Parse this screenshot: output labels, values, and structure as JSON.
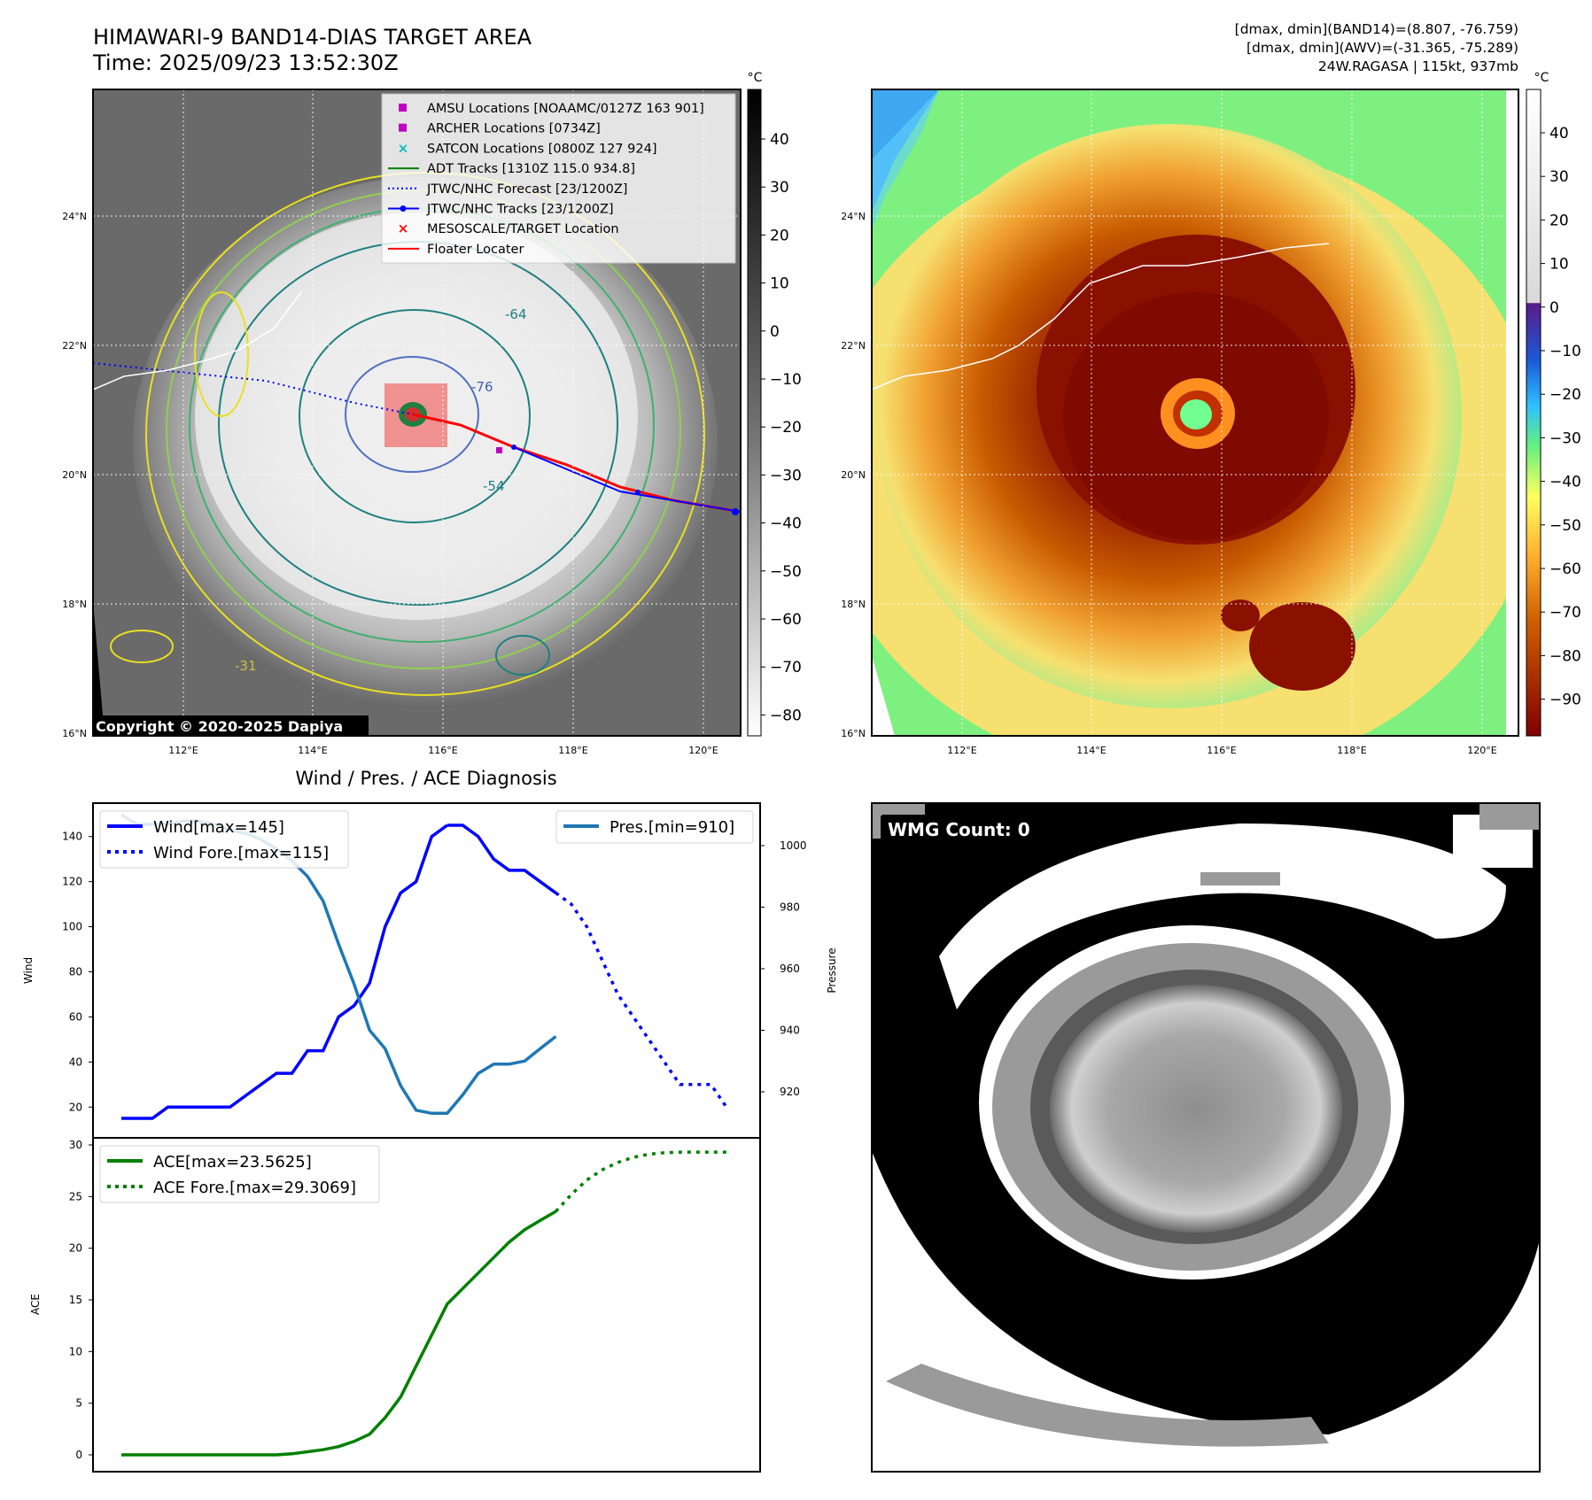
{
  "header": {
    "title": "HIMAWARI-9 BAND14-DIAS TARGET AREA",
    "time": "Time: 2025/09/23 13:52:30Z",
    "right_line1": "[dmax, dmin](BAND14)=(8.807, -76.759)",
    "right_line2": "[dmax, dmin](AWV)=(-31.365, -75.289)",
    "right_line3": "24W.RAGASA | 115kt, 937mb"
  },
  "maps": {
    "lat_labels": [
      "24°N",
      "22°N",
      "20°N",
      "18°N",
      "16°N"
    ],
    "lon_labels": [
      "112°E",
      "114°E",
      "116°E",
      "118°E",
      "120°E"
    ],
    "copyright": "Copyright © 2020-2025 Dapiya",
    "contour_labels": [
      "-31",
      "-54",
      "-64",
      "-76"
    ],
    "legend": [
      {
        "label": "AMSU Locations [NOAAMC/0127Z 163 901]",
        "marker": "square",
        "color": "#c000c0"
      },
      {
        "label": "ARCHER Locations [0734Z]",
        "marker": "square",
        "color": "#c000c0"
      },
      {
        "label": "SATCON Locations [0800Z 127 924]",
        "marker": "x",
        "color": "#00bfbf"
      },
      {
        "label": "ADT Tracks [1310Z 115.0 934.8]",
        "marker": "line",
        "color": "#008000"
      },
      {
        "label": "JTWC/NHC Forecast [23/1200Z]",
        "marker": "dotted",
        "color": "#0000ff"
      },
      {
        "label": "JTWC/NHC Tracks [23/1200Z]",
        "marker": "line-dot",
        "color": "#0000ff"
      },
      {
        "label": "MESOSCALE/TARGET Location",
        "marker": "x",
        "color": "#ff0000"
      },
      {
        "label": "Floater Locater",
        "marker": "line",
        "color": "#ff0000"
      }
    ],
    "gray_colorbar": {
      "unit": "°C",
      "ticks": [
        "40",
        "30",
        "20",
        "10",
        "0",
        "−10",
        "−20",
        "−30",
        "−40",
        "−50",
        "−60",
        "−70",
        "−80"
      ]
    },
    "color_colorbar": {
      "unit": "°C",
      "ticks": [
        "40",
        "30",
        "20",
        "10",
        "0",
        "−10",
        "−20",
        "−30",
        "−40",
        "−50",
        "−60",
        "−70",
        "−80",
        "−90"
      ]
    }
  },
  "diagnosis": {
    "title": "Wind / Pres. / ACE Diagnosis",
    "wind_ylabel": "Wind",
    "pres_ylabel": "Pressure",
    "ace_ylabel": "ACE",
    "legend_wind": "Wind[max=145]",
    "legend_wind_fore": "Wind Fore.[max=115]",
    "legend_pres": "Pres.[min=910]",
    "legend_ace": "ACE[max=23.5625]",
    "legend_ace_fore": "ACE Fore.[max=29.3069]",
    "wind_ticks": [
      "140",
      "120",
      "100",
      "80",
      "60",
      "40",
      "20"
    ],
    "pres_ticks": [
      "1000",
      "980",
      "960",
      "940",
      "920"
    ],
    "ace_ticks": [
      "30",
      "25",
      "20",
      "15",
      "10",
      "5",
      "0"
    ]
  },
  "wmg": {
    "label": "WMG Count: 0"
  },
  "chart_data": [
    {
      "type": "line",
      "title": "Wind / Pres. / ACE Diagnosis",
      "xlabel": "",
      "ylabel": "Wind",
      "ylim": [
        13,
        150
      ],
      "series": [
        {
          "name": "Wind[max=145]",
          "color": "#0000ff",
          "x": [
            0,
            1,
            2,
            3,
            4,
            5,
            6,
            7,
            8,
            9,
            10,
            11,
            12,
            13,
            14,
            15,
            16,
            17,
            18,
            19,
            20,
            21
          ],
          "values": [
            15,
            15,
            15,
            20,
            20,
            20,
            20,
            20,
            25,
            30,
            35,
            35,
            45,
            45,
            60,
            65,
            75,
            100,
            115,
            120,
            140,
            145
          ]
        },
        {
          "name": "Wind Fore.[max=115]",
          "color": "#0000ff",
          "dashed": true,
          "x": [
            28,
            29,
            30,
            31,
            32,
            33,
            34,
            35,
            36,
            37,
            38,
            39
          ],
          "values": [
            115,
            110,
            100,
            85,
            70,
            60,
            50,
            40,
            30,
            30,
            30,
            20
          ]
        }
      ],
      "note_wind_tail": {
        "x": [
          21,
          22,
          23,
          24,
          25,
          26,
          27,
          28
        ],
        "values": [
          145,
          145,
          140,
          130,
          125,
          125,
          120,
          115
        ]
      }
    },
    {
      "type": "line",
      "ylabel": "Pressure",
      "ylim": [
        905,
        1010
      ],
      "series": [
        {
          "name": "Pres.[min=910]",
          "color": "#1f77b4",
          "x": [
            0,
            1,
            2,
            3,
            4,
            5,
            6,
            7,
            8,
            9,
            10,
            11,
            12,
            13,
            14,
            15,
            16,
            17,
            18,
            19,
            20,
            21,
            22,
            23,
            24,
            25,
            26,
            27,
            28
          ],
          "values": [
            1010,
            1007,
            1007,
            1007,
            1008,
            1008,
            1007,
            1005,
            1004,
            1002,
            999,
            995,
            990,
            982,
            968,
            955,
            940,
            934,
            922,
            914,
            913,
            913,
            919,
            926,
            929,
            929,
            930,
            934,
            938
          ]
        }
      ]
    },
    {
      "type": "line",
      "ylabel": "ACE",
      "ylim": [
        -1,
        30
      ],
      "series": [
        {
          "name": "ACE[max=23.5625]",
          "color": "#008000",
          "x": [
            0,
            2,
            4,
            6,
            8,
            10,
            11,
            12,
            13,
            14,
            15,
            16,
            17,
            18,
            19,
            20,
            21,
            22,
            23,
            24,
            25,
            26,
            27,
            28
          ],
          "values": [
            0,
            0,
            0,
            0,
            0,
            0,
            0.1,
            0.3,
            0.5,
            0.8,
            1.3,
            2.0,
            3.6,
            5.6,
            8.6,
            11.6,
            14.6,
            16.1,
            17.6,
            19.1,
            20.6,
            21.8,
            22.7,
            23.5625
          ]
        },
        {
          "name": "ACE Fore.[max=29.3069]",
          "color": "#008000",
          "dashed": true,
          "x": [
            28,
            29,
            30,
            31,
            32,
            33,
            34,
            35,
            36,
            37,
            38,
            39
          ],
          "values": [
            23.5625,
            25.2,
            26.6,
            27.6,
            28.3,
            28.8,
            29.1,
            29.25,
            29.3,
            29.3069,
            29.3069,
            29.3069
          ]
        }
      ]
    }
  ]
}
